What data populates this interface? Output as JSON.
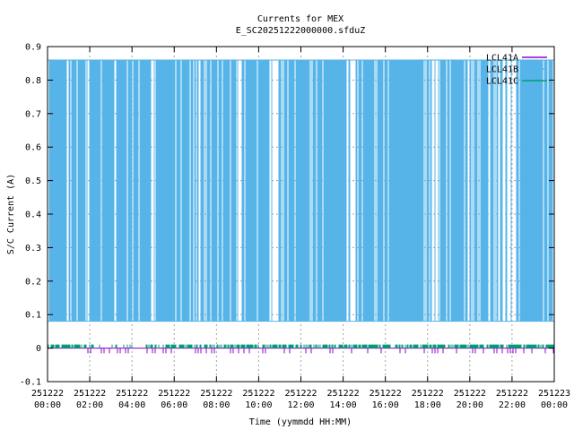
{
  "chart_data": {
    "type": "line",
    "title": "Currents for MEX",
    "subtitle": "E_SC20251222000000.sfduZ",
    "xlabel": "Time (yymmdd HH:MM)",
    "ylabel": "S/C Current (A)",
    "ylim": [
      -0.1,
      0.9
    ],
    "yticks": [
      "-0.1",
      "0",
      "0.1",
      "0.2",
      "0.3",
      "0.4",
      "0.5",
      "0.6",
      "0.7",
      "0.8",
      "0.9"
    ],
    "xlim": [
      0,
      24
    ],
    "xticks": [
      {
        "date": "251222",
        "time": "00:00"
      },
      {
        "date": "251222",
        "time": "02:00"
      },
      {
        "date": "251222",
        "time": "04:00"
      },
      {
        "date": "251222",
        "time": "06:00"
      },
      {
        "date": "251222",
        "time": "08:00"
      },
      {
        "date": "251222",
        "time": "10:00"
      },
      {
        "date": "251222",
        "time": "12:00"
      },
      {
        "date": "251222",
        "time": "14:00"
      },
      {
        "date": "251222",
        "time": "16:00"
      },
      {
        "date": "251222",
        "time": "18:00"
      },
      {
        "date": "251222",
        "time": "20:00"
      },
      {
        "date": "251222",
        "time": "22:00"
      },
      {
        "date": "251223",
        "time": "00:00"
      }
    ],
    "grid": true,
    "legend_position": "top-right",
    "series": [
      {
        "name": "LCL41A",
        "color": "#9400d3",
        "low": -0.01,
        "high": 0.0,
        "baseline": 0.0
      },
      {
        "name": "LCL41B",
        "color": "#56b4e9",
        "low": 0.08,
        "high": 0.86,
        "baseline": 0.08
      },
      {
        "name": "LCL41C",
        "color": "#009e73",
        "low": 0.0,
        "high": 0.01,
        "baseline": 0.0
      }
    ],
    "low_state_intervals": [
      [
        0.1,
        1.8
      ],
      [
        2.0,
        4.9
      ],
      [
        5.1,
        8.9
      ],
      [
        9.3,
        10.5
      ],
      [
        11.1,
        14.2
      ],
      [
        14.7,
        15.5
      ],
      [
        16.0,
        18.2
      ],
      [
        18.6,
        19.8
      ],
      [
        20.2,
        21.1
      ],
      [
        22.2,
        23.9
      ]
    ]
  }
}
